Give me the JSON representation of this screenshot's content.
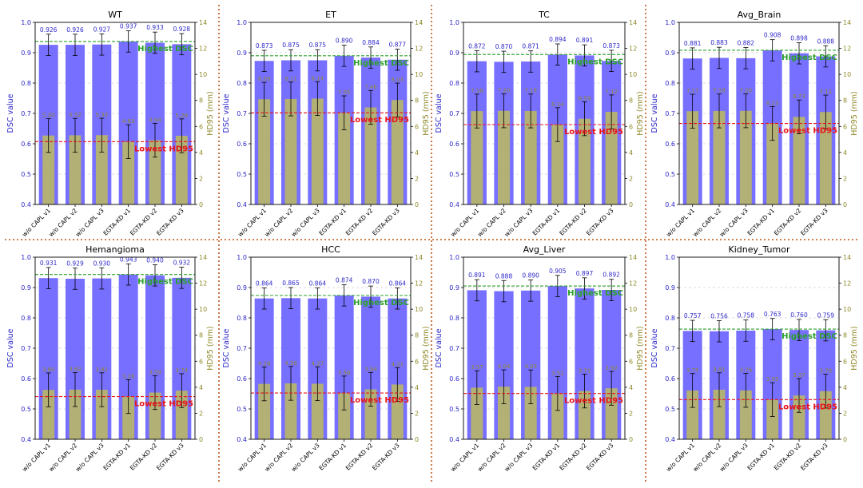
{
  "legend_labels": {
    "best_dsc": "Highest DSC",
    "best_hd95": "Lowest HD95"
  },
  "axis_labels": {
    "left": "DSC value",
    "right": "HD95 (mm)"
  },
  "colors": {
    "dsc_bar": "#6b63ff",
    "hd95_bar": "#b5b36e",
    "highest_dsc_line": "#2ca02c",
    "lowest_hd95_line": "#e8141a",
    "separator": "#c0551a",
    "dsc_label": "#2d27c8",
    "hd95_label": "#8f8a2a"
  },
  "chart_data": [
    {
      "type": "bar",
      "title": "WT",
      "categories": [
        "w/o CAPL v1",
        "w/o CAPL v2",
        "w/o CAPL v3",
        "EGTA-KD v1",
        "EGTA-KD v2",
        "EGTA-KD v3"
      ],
      "dsc": [
        0.926,
        0.926,
        0.927,
        0.937,
        0.933,
        0.928
      ],
      "hd95": [
        5.3,
        5.32,
        5.33,
        4.83,
        4.94,
        5.28
      ],
      "dsc_labels": [
        "0.926",
        "0.926",
        "0.927",
        "0.937",
        "0.933",
        "0.928"
      ],
      "hd95_labels": [
        "5.30",
        "5.32",
        "5.33",
        "4.83",
        "4.94",
        "5.28"
      ],
      "ylim_left": [
        0.4,
        1.0
      ],
      "ylim_right": [
        0,
        14
      ],
      "yticks_left": [
        "0.4",
        "0.5",
        "0.6",
        "0.7",
        "0.8",
        "0.9",
        "1.0"
      ],
      "yticks_right": [
        "0",
        "2",
        "4",
        "6",
        "8",
        "10",
        "12",
        "14"
      ],
      "highest_dsc": 0.937,
      "lowest_hd95": 4.83
    },
    {
      "type": "bar",
      "title": "ET",
      "categories": [
        "w/o CAPL v1",
        "w/o CAPL v2",
        "w/o CAPL v3",
        "EGTA-KD v1",
        "EGTA-KD v2",
        "EGTA-KD v3"
      ],
      "dsc": [
        0.873,
        0.875,
        0.875,
        0.89,
        0.884,
        0.877
      ],
      "hd95": [
        8.09,
        8.11,
        8.14,
        7.05,
        7.46,
        8.03
      ],
      "dsc_labels": [
        "0.873",
        "0.875",
        "0.875",
        "0.890",
        "0.884",
        "0.877"
      ],
      "hd95_labels": [
        "8.09",
        "8.11",
        "8.14",
        "7.05",
        "7.46",
        "8.03"
      ],
      "ylim_left": [
        0.4,
        1.0
      ],
      "ylim_right": [
        0,
        14
      ],
      "yticks_left": [
        "0.4",
        "0.5",
        "0.6",
        "0.7",
        "0.8",
        "0.9",
        "1.0"
      ],
      "yticks_right": [
        "0",
        "2",
        "4",
        "6",
        "8",
        "10",
        "12",
        "14"
      ],
      "highest_dsc": 0.89,
      "lowest_hd95": 7.05
    },
    {
      "type": "bar",
      "title": "TC",
      "categories": [
        "w/o CAPL v1",
        "w/o CAPL v2",
        "w/o CAPL v3",
        "EGTA-KD v1",
        "EGTA-KD v2",
        "EGTA-KD v3"
      ],
      "dsc": [
        0.872,
        0.87,
        0.871,
        0.894,
        0.891,
        0.873
      ],
      "hd95": [
        7.18,
        7.2,
        7.19,
        6.14,
        6.59,
        7.12
      ],
      "dsc_labels": [
        "0.872",
        "0.870",
        "0.871",
        "0.894",
        "0.891",
        "0.873"
      ],
      "hd95_labels": [
        "7.18",
        "7.20",
        "7.19",
        "6.14",
        "6.59",
        "7.12"
      ],
      "ylim_left": [
        0.4,
        1.0
      ],
      "ylim_right": [
        0,
        14
      ],
      "yticks_left": [
        "0.4",
        "0.5",
        "0.6",
        "0.7",
        "0.8",
        "0.9",
        "1.0"
      ],
      "yticks_right": [
        "0",
        "2",
        "4",
        "6",
        "8",
        "10",
        "12",
        "14"
      ],
      "highest_dsc": 0.894,
      "lowest_hd95": 6.14
    },
    {
      "type": "bar",
      "title": "Avg_Brain",
      "categories": [
        "w/o CAPL v1",
        "w/o CAPL v2",
        "w/o CAPL v3",
        "EGTA-KD v1",
        "EGTA-KD v2",
        "EGTA-KD v3"
      ],
      "dsc": [
        0.881,
        0.883,
        0.882,
        0.908,
        0.898,
        0.888
      ],
      "hd95": [
        7.17,
        7.19,
        7.2,
        6.23,
        6.73,
        7.11
      ],
      "dsc_labels": [
        "0.881",
        "0.883",
        "0.882",
        "0.908",
        "0.898",
        "0.888"
      ],
      "hd95_labels": [
        "7.17",
        "7.19",
        "7.20",
        "6.23",
        "6.73",
        "7.11"
      ],
      "ylim_left": [
        0.4,
        1.0
      ],
      "ylim_right": [
        0,
        14
      ],
      "yticks_left": [
        "0.4",
        "0.5",
        "0.6",
        "0.7",
        "0.8",
        "0.9",
        "1.0"
      ],
      "yticks_right": [
        "0",
        "2",
        "4",
        "6",
        "8",
        "10",
        "12",
        "14"
      ],
      "highest_dsc": 0.908,
      "lowest_hd95": 6.23
    },
    {
      "type": "bar",
      "title": "Hemangioma",
      "categories": [
        "w/o CAPL v1",
        "w/o CAPL v2",
        "w/o CAPL v3",
        "EGTA-KD v1",
        "EGTA-KD v2",
        "EGTA-KD v3"
      ],
      "dsc": [
        0.931,
        0.929,
        0.93,
        0.943,
        0.94,
        0.932
      ],
      "hd95": [
        3.8,
        3.82,
        3.81,
        3.28,
        3.59,
        3.74
      ],
      "dsc_labels": [
        "0.931",
        "0.929",
        "0.930",
        "0.943",
        "0.940",
        "0.932"
      ],
      "hd95_labels": [
        "3.80",
        "3.82",
        "3.81",
        "3.28",
        "3.59",
        "3.74"
      ],
      "ylim_left": [
        0.4,
        1.0
      ],
      "ylim_right": [
        0,
        14
      ],
      "yticks_left": [
        "0.4",
        "0.5",
        "0.6",
        "0.7",
        "0.8",
        "0.9",
        "1.0"
      ],
      "yticks_right": [
        "0",
        "2",
        "4",
        "6",
        "8",
        "10",
        "12",
        "14"
      ],
      "highest_dsc": 0.943,
      "lowest_hd95": 3.28
    },
    {
      "type": "bar",
      "title": "HCC",
      "categories": [
        "w/o CAPL v1",
        "w/o CAPL v2",
        "w/o CAPL v3",
        "EGTA-KD v1",
        "EGTA-KD v2",
        "EGTA-KD v3"
      ],
      "dsc": [
        0.864,
        0.865,
        0.864,
        0.874,
        0.87,
        0.864
      ],
      "hd95": [
        4.26,
        4.3,
        4.27,
        3.56,
        3.84,
        4.21
      ],
      "dsc_labels": [
        "0.864",
        "0.865",
        "0.864",
        "0.874",
        "0.870",
        "0.864"
      ],
      "hd95_labels": [
        "4.26",
        "4.30",
        "4.27",
        "3.56",
        "3.84",
        "4.21"
      ],
      "ylim_left": [
        0.4,
        1.0
      ],
      "ylim_right": [
        0,
        14
      ],
      "yticks_left": [
        "0.4",
        "0.5",
        "0.6",
        "0.7",
        "0.8",
        "0.9",
        "1.0"
      ],
      "yticks_right": [
        "0",
        "2",
        "4",
        "6",
        "8",
        "10",
        "12",
        "14"
      ],
      "highest_dsc": 0.874,
      "lowest_hd95": 3.56
    },
    {
      "type": "bar",
      "title": "Avg_Liver",
      "categories": [
        "w/o CAPL v1",
        "w/o CAPL v2",
        "w/o CAPL v3",
        "EGTA-KD v1",
        "EGTA-KD v2",
        "EGTA-KD v3"
      ],
      "dsc": [
        0.891,
        0.888,
        0.89,
        0.905,
        0.897,
        0.892
      ],
      "hd95": [
        3.97,
        4.04,
        4.03,
        3.52,
        3.71,
        3.92
      ],
      "dsc_labels": [
        "0.891",
        "0.888",
        "0.890",
        "0.905",
        "0.897",
        "0.892"
      ],
      "hd95_labels": [
        "3.97",
        "4.04",
        "4.03",
        "3.52",
        "3.71",
        "3.92"
      ],
      "ylim_left": [
        0.4,
        1.0
      ],
      "ylim_right": [
        0,
        14
      ],
      "yticks_left": [
        "0.4",
        "0.5",
        "0.6",
        "0.7",
        "0.8",
        "0.9",
        "1.0"
      ],
      "yticks_right": [
        "0",
        "2",
        "4",
        "6",
        "8",
        "10",
        "12",
        "14"
      ],
      "highest_dsc": 0.905,
      "lowest_hd95": 3.52
    },
    {
      "type": "bar",
      "title": "Kidney_Tumor",
      "categories": [
        "w/o CAPL v1",
        "w/o CAPL v2",
        "w/o CAPL v3",
        "EGTA-KD v1",
        "EGTA-KD v2",
        "EGTA-KD v3"
      ],
      "dsc": [
        0.757,
        0.756,
        0.758,
        0.763,
        0.76,
        0.759
      ],
      "hd95": [
        3.75,
        3.81,
        3.76,
        3.05,
        3.37,
        3.7
      ],
      "dsc_labels": [
        "0.757",
        "0.756",
        "0.758",
        "0.763",
        "0.760",
        "0.759"
      ],
      "hd95_labels": [
        "3.75",
        "3.81",
        "3.76",
        "3.05",
        "3.37",
        "3.70"
      ],
      "ylim_left": [
        0.4,
        1.0
      ],
      "ylim_right": [
        0,
        14
      ],
      "yticks_left": [
        "0.4",
        "0.5",
        "0.6",
        "0.7",
        "0.8",
        "0.9",
        "1.0"
      ],
      "yticks_right": [
        "0",
        "2",
        "4",
        "6",
        "8",
        "10",
        "12",
        "14"
      ],
      "highest_dsc": 0.763,
      "lowest_hd95": 3.05
    }
  ]
}
